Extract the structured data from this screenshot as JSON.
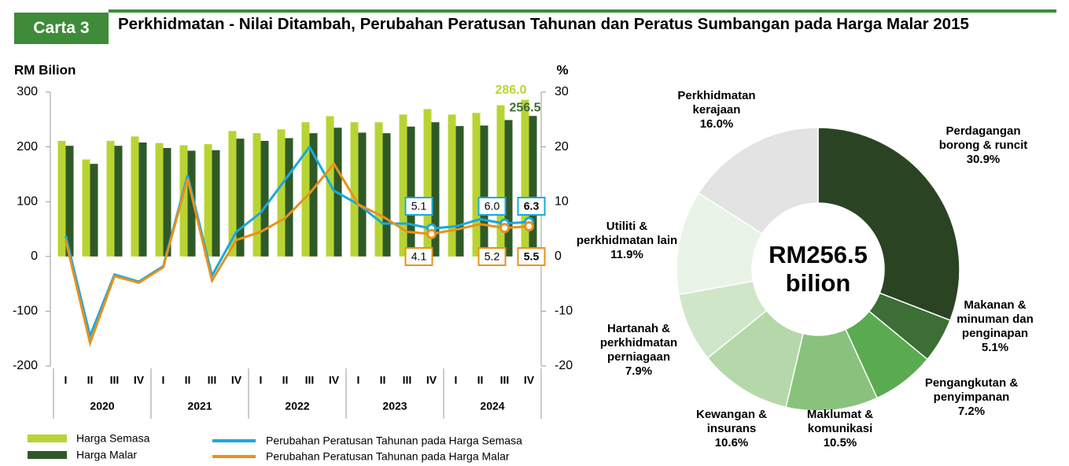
{
  "badge": "Carta 3",
  "title": "Perkhidmatan - Nilai Ditambah, Perubahan Peratusan Tahunan dan Peratus Sumbangan pada Harga Malar 2015",
  "chart_data": [
    {
      "type": "bar-line",
      "y_label": "RM Bilion",
      "y2_label": "%",
      "categories": [
        "I",
        "II",
        "III",
        "IV",
        "I",
        "II",
        "III",
        "IV",
        "I",
        "II",
        "III",
        "IV",
        "I",
        "II",
        "III",
        "IV",
        "I",
        "II",
        "III",
        "IV"
      ],
      "year_groups": [
        "2020",
        "2021",
        "2022",
        "2023",
        "2024"
      ],
      "ylim": [
        -200,
        300
      ],
      "yticks": [
        -200,
        -100,
        0,
        100,
        200,
        300
      ],
      "y2lim": [
        -20,
        30
      ],
      "y2ticks": [
        -20,
        -10,
        0,
        10,
        20,
        30
      ],
      "series": [
        {
          "name": "Harga Semasa",
          "kind": "bar",
          "color": "#b8d433",
          "values": [
            211,
            177,
            211,
            219,
            207,
            203,
            205,
            229,
            225,
            232,
            245,
            256,
            245,
            245,
            259,
            269,
            259,
            262,
            276,
            286.0
          ],
          "value_labels": [
            null,
            null,
            null,
            null,
            null,
            null,
            null,
            null,
            null,
            null,
            null,
            null,
            null,
            null,
            null,
            null,
            null,
            null,
            null,
            "286.0"
          ]
        },
        {
          "name": "Harga Malar",
          "kind": "bar",
          "color": "#2f5a28",
          "values": [
            202,
            169,
            202,
            208,
            198,
            193,
            194,
            215,
            211,
            216,
            225,
            235,
            226,
            225,
            237,
            245,
            238,
            239,
            249,
            256.5
          ],
          "value_labels": [
            null,
            null,
            null,
            null,
            null,
            null,
            null,
            null,
            null,
            null,
            null,
            null,
            null,
            null,
            null,
            null,
            null,
            null,
            null,
            "256.5"
          ]
        },
        {
          "name": "Perubahan Peratusan Tahunan pada Harga Semasa",
          "kind": "line",
          "axis": "y2",
          "color": "#18a9de",
          "values": [
            3.8,
            -14.5,
            -3.3,
            -4.6,
            -1.8,
            14.8,
            -3.5,
            4.5,
            8.0,
            14.0,
            20.0,
            12.0,
            9.5,
            6.0,
            6.0,
            5.1,
            5.5,
            6.8,
            6.0,
            6.3
          ],
          "value_labels": [
            null,
            null,
            null,
            null,
            null,
            null,
            null,
            null,
            null,
            null,
            null,
            null,
            null,
            null,
            null,
            "5.1",
            null,
            null,
            "6.0",
            "6.3"
          ]
        },
        {
          "name": "Perubahan Peratusan Tahunan pada Harga Malar",
          "kind": "line",
          "axis": "y2",
          "color": "#e8911c",
          "values": [
            3.0,
            -15.8,
            -3.6,
            -4.8,
            -2.0,
            14.2,
            -4.4,
            3.0,
            4.5,
            7.0,
            11.5,
            16.9,
            9.5,
            7.3,
            4.5,
            4.1,
            4.9,
            5.9,
            5.2,
            5.5
          ],
          "value_labels": [
            null,
            null,
            null,
            null,
            null,
            null,
            null,
            null,
            null,
            null,
            null,
            null,
            null,
            null,
            null,
            "4.1",
            null,
            null,
            "5.2",
            "5.5"
          ]
        }
      ]
    },
    {
      "type": "donut",
      "center_label": "RM256.5 bilion",
      "categories": [
        "Perdagangan borong & runcit",
        "Makanan & minuman dan penginapan",
        "Pengangkutan & penyimpanan",
        "Maklumat & komunikasi",
        "Kewangan & insurans",
        "Hartanah & perkhidmatan perniagaan",
        "Utiliti & perkhidmatan lain",
        "Perkhidmatan kerajaan"
      ],
      "values": [
        30.9,
        5.1,
        7.2,
        10.5,
        10.6,
        7.9,
        11.9,
        16.0
      ],
      "value_labels": [
        "30.9%",
        "5.1%",
        "7.2%",
        "10.5%",
        "10.6%",
        "7.9%",
        "11.9%",
        "16.0%"
      ],
      "colors": [
        "#2a4423",
        "#3c6e35",
        "#5aab50",
        "#88c27c",
        "#b4d8aa",
        "#d0e6c9",
        "#eaf3e7",
        "#e3e3e3"
      ]
    }
  ]
}
